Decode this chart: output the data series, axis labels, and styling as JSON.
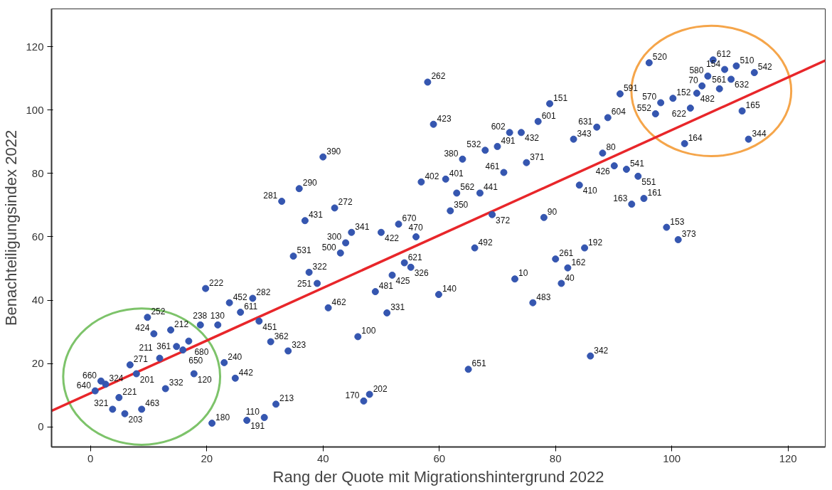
{
  "chart_data": {
    "type": "scatter",
    "xlabel": "Rang der Quote mit Migrationshintergrund 2022",
    "ylabel": "Benachteiligungsindex 2022",
    "xlim": [
      -6.7,
      126.4
    ],
    "ylim": [
      -6.3,
      131.9
    ],
    "xticks": [
      0,
      20,
      40,
      60,
      80,
      100,
      120
    ],
    "yticks": [
      0,
      20,
      40,
      60,
      80,
      100,
      120
    ],
    "grid": false,
    "series": [
      {
        "color": "#3556b0",
        "marker": "circle",
        "x": [
          9.8,
          10.9,
          13.8,
          18.9,
          21.9,
          19.8,
          23.9,
          27.9,
          25.8,
          29.0,
          34.9,
          37.6,
          14.8,
          16.9,
          15.9,
          11.9,
          6.8,
          7.9,
          1.8,
          2.6,
          0.8,
          4.9,
          3.8,
          5.9,
          8.8,
          12.9,
          17.8,
          23.0,
          24.9,
          31.0,
          34.0,
          20.9,
          26.9,
          29.9,
          31.9,
          35.9,
          32.9,
          36.9,
          58.0,
          59.0,
          40.0,
          79.0,
          77.0,
          72.1,
          74.1,
          67.9,
          70.0,
          64.0,
          75.0,
          71.1,
          56.9,
          61.1,
          63.0,
          67.0,
          42.0,
          61.9,
          69.1,
          78.0,
          53.0,
          44.9,
          50.0,
          56.0,
          43.9,
          43.0,
          66.1,
          80.0,
          54.0,
          55.1,
          39.0,
          51.9,
          73.0,
          49.0,
          59.9,
          76.1,
          40.9,
          51.0,
          46.0,
          65.0,
          48.0,
          47.0,
          96.1,
          107.1,
          111.1,
          109.1,
          114.2,
          106.2,
          110.2,
          105.2,
          108.2,
          104.3,
          100.2,
          98.1,
          103.2,
          97.2,
          112.1,
          102.2,
          113.2,
          91.1,
          89.0,
          87.1,
          83.1,
          88.1,
          90.1,
          92.2,
          94.2,
          84.1,
          95.2,
          93.1,
          99.1,
          101.1,
          85.0,
          82.1,
          81.0,
          86.0
        ],
        "values": [
          34.6,
          29.4,
          30.6,
          32.2,
          32.2,
          43.7,
          39.2,
          40.6,
          36.2,
          33.4,
          53.9,
          48.8,
          25.4,
          27.1,
          24.3,
          21.7,
          19.6,
          16.8,
          14.5,
          13.5,
          11.4,
          9.3,
          5.6,
          4.2,
          5.6,
          12.1,
          16.8,
          20.3,
          15.4,
          26.9,
          24.0,
          1.2,
          2.1,
          3.0,
          7.2,
          75.2,
          71.2,
          65.1,
          108.8,
          95.5,
          85.2,
          102.0,
          96.4,
          92.9,
          92.9,
          87.3,
          88.5,
          84.5,
          83.4,
          80.3,
          77.3,
          78.2,
          73.8,
          73.8,
          69.1,
          68.2,
          67.0,
          66.1,
          64.0,
          61.4,
          61.4,
          60.0,
          58.1,
          54.9,
          56.5,
          53.0,
          51.8,
          50.4,
          45.3,
          47.9,
          46.7,
          42.7,
          41.8,
          39.2,
          37.6,
          36.0,
          28.5,
          18.2,
          10.3,
          8.2,
          114.9,
          115.8,
          113.9,
          112.8,
          111.8,
          110.7,
          109.7,
          107.6,
          106.7,
          105.3,
          103.7,
          102.3,
          100.6,
          98.8,
          99.7,
          89.4,
          90.8,
          105.1,
          97.6,
          94.6,
          90.8,
          86.4,
          82.4,
          81.3,
          79.1,
          76.3,
          72.1,
          70.3,
          63.0,
          59.1,
          56.5,
          50.2,
          45.3,
          22.4
        ]
      },
      {
        "type": "line",
        "color": "#e8262a",
        "line_style": "solid",
        "x": [
          -6.7,
          126.4
        ],
        "values": [
          5.1,
          115.6
        ]
      }
    ],
    "annotations": [
      {
        "text": "252",
        "x": 9.8,
        "y": 34.6
      },
      {
        "text": "424",
        "x": 10.9,
        "y": 29.4
      },
      {
        "text": "212",
        "x": 13.8,
        "y": 30.6
      },
      {
        "text": "238",
        "x": 18.9,
        "y": 32.2
      },
      {
        "text": "130",
        "x": 21.9,
        "y": 32.2
      },
      {
        "text": "222",
        "x": 19.8,
        "y": 43.7
      },
      {
        "text": "452",
        "x": 23.9,
        "y": 39.2
      },
      {
        "text": "282",
        "x": 27.9,
        "y": 40.6
      },
      {
        "text": "611",
        "x": 25.8,
        "y": 36.2
      },
      {
        "text": "451",
        "x": 29.0,
        "y": 33.4
      },
      {
        "text": "531",
        "x": 34.9,
        "y": 53.9
      },
      {
        "text": "322",
        "x": 37.6,
        "y": 48.8
      },
      {
        "text": "361",
        "x": 14.8,
        "y": 25.4
      },
      {
        "text": "680",
        "x": 16.9,
        "y": 27.1
      },
      {
        "text": "650",
        "x": 15.9,
        "y": 24.3
      },
      {
        "text": "211",
        "x": 11.9,
        "y": 21.7
      },
      {
        "text": "271",
        "x": 6.8,
        "y": 19.6
      },
      {
        "text": "201",
        "x": 7.9,
        "y": 16.8
      },
      {
        "text": "660",
        "x": 1.8,
        "y": 14.5
      },
      {
        "text": "324",
        "x": 2.6,
        "y": 13.5
      },
      {
        "text": "640",
        "x": 0.8,
        "y": 11.4
      },
      {
        "text": "221",
        "x": 4.9,
        "y": 9.3
      },
      {
        "text": "321",
        "x": 3.8,
        "y": 5.6
      },
      {
        "text": "203",
        "x": 5.9,
        "y": 4.2
      },
      {
        "text": "463",
        "x": 8.8,
        "y": 5.6
      },
      {
        "text": "332",
        "x": 12.9,
        "y": 12.1
      },
      {
        "text": "120",
        "x": 17.8,
        "y": 16.8
      },
      {
        "text": "240",
        "x": 23.0,
        "y": 20.3
      },
      {
        "text": "442",
        "x": 24.9,
        "y": 15.4
      },
      {
        "text": "362",
        "x": 31.0,
        "y": 26.9
      },
      {
        "text": "323",
        "x": 34.0,
        "y": 24.0
      },
      {
        "text": "180",
        "x": 20.9,
        "y": 1.2
      },
      {
        "text": "191",
        "x": 26.9,
        "y": 2.1
      },
      {
        "text": "110",
        "x": 29.9,
        "y": 3.0
      },
      {
        "text": "213",
        "x": 31.9,
        "y": 7.2
      },
      {
        "text": "290",
        "x": 35.9,
        "y": 75.2
      },
      {
        "text": "281",
        "x": 32.9,
        "y": 71.2
      },
      {
        "text": "431",
        "x": 36.9,
        "y": 65.1
      },
      {
        "text": "262",
        "x": 58.0,
        "y": 108.8
      },
      {
        "text": "423",
        "x": 59.0,
        "y": 95.5
      },
      {
        "text": "390",
        "x": 40.0,
        "y": 85.2
      },
      {
        "text": "151",
        "x": 79.0,
        "y": 102.0
      },
      {
        "text": "601",
        "x": 77.0,
        "y": 96.4
      },
      {
        "text": "602",
        "x": 72.1,
        "y": 92.9
      },
      {
        "text": "432",
        "x": 74.1,
        "y": 92.9
      },
      {
        "text": "532",
        "x": 67.9,
        "y": 87.3
      },
      {
        "text": "491",
        "x": 70.0,
        "y": 88.5
      },
      {
        "text": "380",
        "x": 64.0,
        "y": 84.5
      },
      {
        "text": "371",
        "x": 75.0,
        "y": 83.4
      },
      {
        "text": "461",
        "x": 71.1,
        "y": 80.3
      },
      {
        "text": "402",
        "x": 56.9,
        "y": 77.3
      },
      {
        "text": "401",
        "x": 61.1,
        "y": 78.2
      },
      {
        "text": "562",
        "x": 63.0,
        "y": 73.8
      },
      {
        "text": "441",
        "x": 67.0,
        "y": 73.8
      },
      {
        "text": "272",
        "x": 42.0,
        "y": 69.1
      },
      {
        "text": "350",
        "x": 61.9,
        "y": 68.2
      },
      {
        "text": "372",
        "x": 69.1,
        "y": 67.0
      },
      {
        "text": "90",
        "x": 78.0,
        "y": 66.1
      },
      {
        "text": "670",
        "x": 53.0,
        "y": 64.0
      },
      {
        "text": "341",
        "x": 44.9,
        "y": 61.4
      },
      {
        "text": "422",
        "x": 50.0,
        "y": 61.4
      },
      {
        "text": "470",
        "x": 56.0,
        "y": 60.0
      },
      {
        "text": "300",
        "x": 43.9,
        "y": 58.1
      },
      {
        "text": "500",
        "x": 43.0,
        "y": 54.9
      },
      {
        "text": "492",
        "x": 66.1,
        "y": 56.5
      },
      {
        "text": "261",
        "x": 80.0,
        "y": 53.0
      },
      {
        "text": "621",
        "x": 54.0,
        "y": 51.8
      },
      {
        "text": "326",
        "x": 55.1,
        "y": 50.4
      },
      {
        "text": "251",
        "x": 39.0,
        "y": 45.3
      },
      {
        "text": "425",
        "x": 51.9,
        "y": 47.9
      },
      {
        "text": "10",
        "x": 73.0,
        "y": 46.7
      },
      {
        "text": "481",
        "x": 49.0,
        "y": 42.7
      },
      {
        "text": "140",
        "x": 59.9,
        "y": 41.8
      },
      {
        "text": "483",
        "x": 76.1,
        "y": 39.2
      },
      {
        "text": "462",
        "x": 40.9,
        "y": 37.6
      },
      {
        "text": "331",
        "x": 51.0,
        "y": 36.0
      },
      {
        "text": "100",
        "x": 46.0,
        "y": 28.5
      },
      {
        "text": "651",
        "x": 65.0,
        "y": 18.2
      },
      {
        "text": "202",
        "x": 48.0,
        "y": 10.3
      },
      {
        "text": "170",
        "x": 47.0,
        "y": 8.2
      },
      {
        "text": "520",
        "x": 96.1,
        "y": 114.9
      },
      {
        "text": "612",
        "x": 107.1,
        "y": 115.8
      },
      {
        "text": "510",
        "x": 111.1,
        "y": 113.9
      },
      {
        "text": "154",
        "x": 109.1,
        "y": 112.8
      },
      {
        "text": "542",
        "x": 114.2,
        "y": 111.8
      },
      {
        "text": "580",
        "x": 106.2,
        "y": 110.7
      },
      {
        "text": "632",
        "x": 110.2,
        "y": 109.7
      },
      {
        "text": "70",
        "x": 105.2,
        "y": 107.6
      },
      {
        "text": "561",
        "x": 108.2,
        "y": 106.7
      },
      {
        "text": "482",
        "x": 104.3,
        "y": 105.3
      },
      {
        "text": "152",
        "x": 100.2,
        "y": 103.7
      },
      {
        "text": "570",
        "x": 98.1,
        "y": 102.3
      },
      {
        "text": "622",
        "x": 103.2,
        "y": 100.6
      },
      {
        "text": "552",
        "x": 97.2,
        "y": 98.8
      },
      {
        "text": "165",
        "x": 112.1,
        "y": 99.7
      },
      {
        "text": "164",
        "x": 102.2,
        "y": 89.4
      },
      {
        "text": "344",
        "x": 113.2,
        "y": 90.8
      },
      {
        "text": "591",
        "x": 91.1,
        "y": 105.1
      },
      {
        "text": "604",
        "x": 89.0,
        "y": 97.6
      },
      {
        "text": "631",
        "x": 87.1,
        "y": 94.6
      },
      {
        "text": "343",
        "x": 83.1,
        "y": 90.8
      },
      {
        "text": "80",
        "x": 88.1,
        "y": 86.4
      },
      {
        "text": "426",
        "x": 90.1,
        "y": 82.4
      },
      {
        "text": "541",
        "x": 92.2,
        "y": 81.3
      },
      {
        "text": "551",
        "x": 94.2,
        "y": 79.1
      },
      {
        "text": "410",
        "x": 84.1,
        "y": 76.3
      },
      {
        "text": "161",
        "x": 95.2,
        "y": 72.1
      },
      {
        "text": "163",
        "x": 93.1,
        "y": 70.3
      },
      {
        "text": "153",
        "x": 99.1,
        "y": 63.0
      },
      {
        "text": "373",
        "x": 101.1,
        "y": 59.1
      },
      {
        "text": "192",
        "x": 85.0,
        "y": 56.5
      },
      {
        "text": "162",
        "x": 82.1,
        "y": 50.2
      },
      {
        "text": "40",
        "x": 81.0,
        "y": 45.3
      },
      {
        "text": "342",
        "x": 86.0,
        "y": 22.4
      }
    ]
  }
}
